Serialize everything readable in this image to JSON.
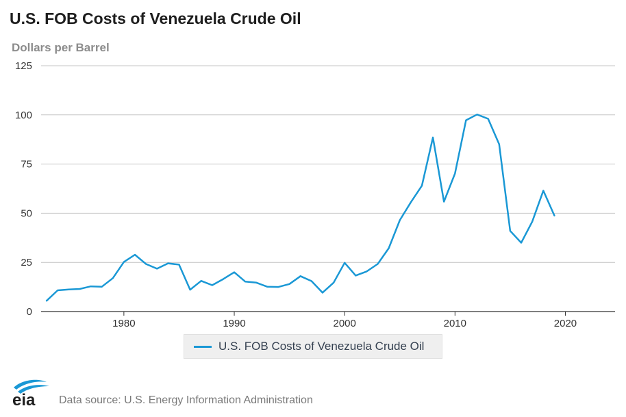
{
  "title": "U.S. FOB Costs of Venezuela Crude Oil",
  "subtitle": "Dollars per Barrel",
  "legend_label": "U.S. FOB Costs of Venezuela Crude Oil",
  "source": "Data source: U.S. Energy Information Administration",
  "logo_text": "eia",
  "colors": {
    "series": "#1a98d5",
    "grid": "#c4c4c4",
    "axis": "#333333"
  },
  "chart_data": {
    "type": "line",
    "title": "U.S. FOB Costs of Venezuela Crude Oil",
    "ylabel": "Dollars per Barrel",
    "xlabel": "",
    "xlim": [
      1972.5,
      2024.5
    ],
    "ylim": [
      0,
      125
    ],
    "yticks": [
      0,
      25,
      50,
      75,
      100,
      125
    ],
    "xticks": [
      1980,
      1990,
      2000,
      2010,
      2020
    ],
    "grid": true,
    "legend": "bottom-center",
    "series": [
      {
        "name": "U.S. FOB Costs of Venezuela Crude Oil",
        "x": [
          1973,
          1974,
          1975,
          1976,
          1977,
          1978,
          1979,
          1980,
          1981,
          1982,
          1983,
          1984,
          1985,
          1986,
          1987,
          1988,
          1989,
          1990,
          1991,
          1992,
          1993,
          1994,
          1995,
          1996,
          1997,
          1998,
          1999,
          2000,
          2001,
          2002,
          2003,
          2004,
          2005,
          2006,
          2007,
          2008,
          2009,
          2010,
          2011,
          2012,
          2013,
          2014,
          2015,
          2016,
          2017,
          2018,
          2019
        ],
        "values": [
          5.5,
          10.8,
          11.2,
          11.5,
          12.8,
          12.6,
          17.0,
          25.2,
          28.9,
          24.2,
          21.8,
          24.5,
          23.9,
          11.1,
          15.6,
          13.4,
          16.5,
          20.0,
          15.2,
          14.7,
          12.6,
          12.5,
          14.0,
          18.0,
          15.5,
          9.6,
          14.7,
          24.8,
          18.3,
          20.4,
          24.2,
          32.2,
          46.5,
          55.6,
          64.0,
          88.5,
          55.9,
          70.2,
          97.3,
          100.2,
          98.0,
          85.1,
          41.0,
          35.0,
          45.7,
          61.5,
          48.8
        ]
      }
    ]
  }
}
